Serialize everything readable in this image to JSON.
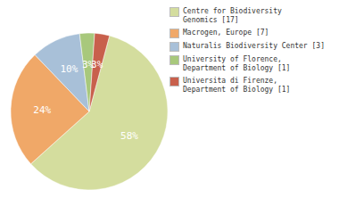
{
  "chart_data": {
    "type": "pie",
    "categories": [
      "Centre for Biodiversity\nGenomics [17]",
      "Macrogen, Europe [7]",
      "Naturalis Biodiversity Center [3]",
      "University of Florence,\nDepartment of Biology [1]",
      "Universita di Firenze,\nDepartment of Biology [1]"
    ],
    "values": [
      58,
      24,
      10,
      3,
      3
    ],
    "value_labels": [
      "58%",
      "24%",
      "10%",
      "3%",
      "3%"
    ],
    "colors": [
      "#d4dd9e",
      "#f0a868",
      "#a8c0d8",
      "#a8c87c",
      "#c8604c"
    ],
    "data_labels": true,
    "legend": "right"
  }
}
